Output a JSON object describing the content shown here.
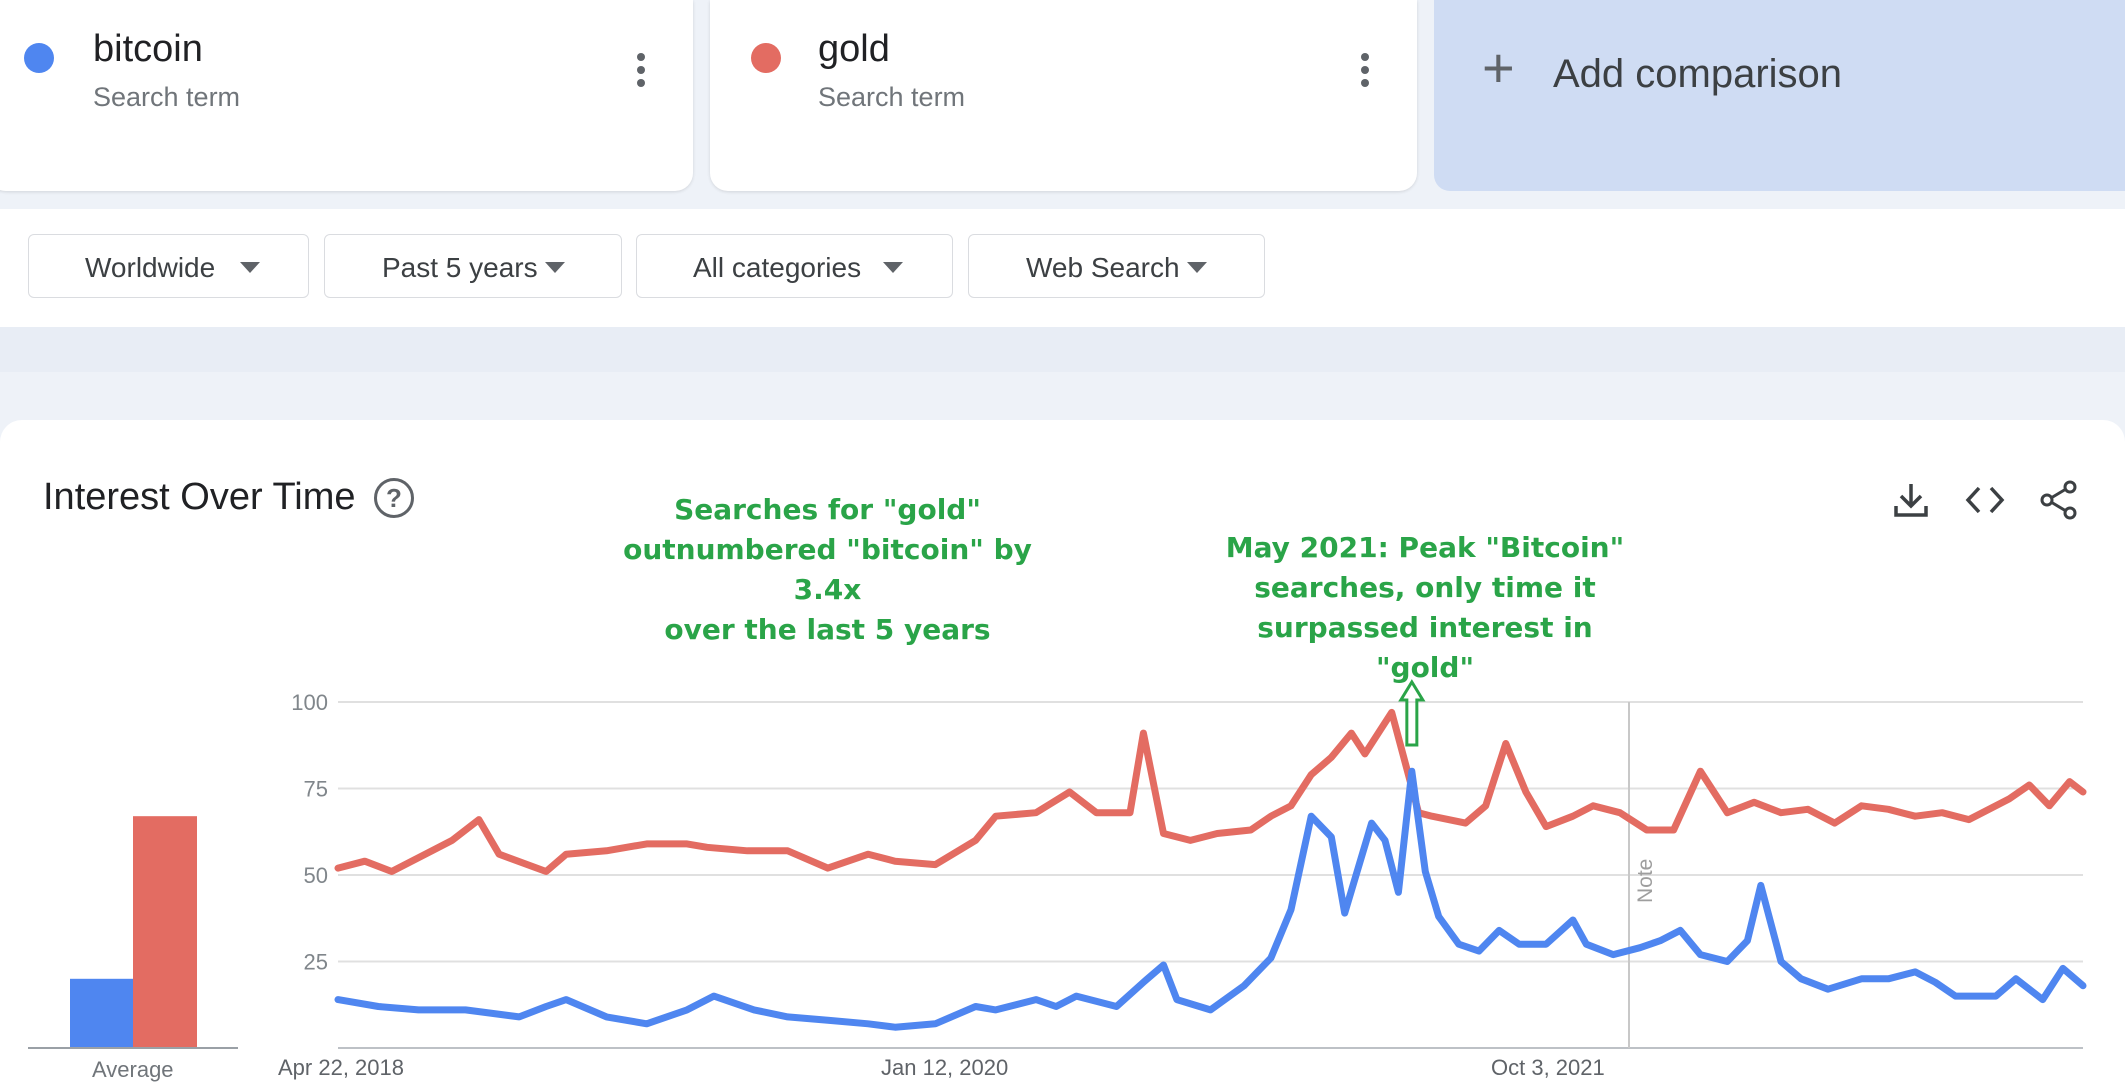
{
  "terms": [
    {
      "name": "bitcoin",
      "subtitle": "Search term",
      "color": "#4f86f0"
    },
    {
      "name": "gold",
      "subtitle": "Search term",
      "color": "#e36c62"
    }
  ],
  "add_comparison": {
    "plus": "+",
    "label": "Add comparison"
  },
  "filters": [
    {
      "label": "Worldwide"
    },
    {
      "label": "Past 5 years"
    },
    {
      "label": "All categories"
    },
    {
      "label": "Web Search"
    }
  ],
  "chart_card": {
    "title": "Interest Over Time",
    "help": "?",
    "tools": [
      "download-icon",
      "embed-code-icon",
      "share-icon"
    ]
  },
  "annotations": {
    "gold_vs_bitcoin": [
      "Searches for \"gold\"",
      "outnumbered \"bitcoin\" by 3.4x",
      "over the last 5 years"
    ],
    "may_2021": [
      "May 2021: Peak \"Bitcoin\"",
      "searches, only time it",
      "surpassed interest in \"gold\""
    ]
  },
  "chart_data": {
    "type": "line",
    "title": "Interest Over Time",
    "x_ticks": [
      "Apr 22, 2018",
      "Jan 12, 2020",
      "Oct 3, 2021"
    ],
    "note_label": "Note",
    "yticks": [
      25,
      50,
      75,
      100
    ],
    "ylim": [
      0,
      100
    ],
    "grid": true,
    "x_range": [
      "2018-04-22",
      "2023-04-16"
    ],
    "series": [
      {
        "name": "bitcoin",
        "color": "#4f86f0",
        "average": 20,
        "points": [
          [
            "2018-04-22",
            14
          ],
          [
            "2018-06-03",
            12
          ],
          [
            "2018-07-15",
            11
          ],
          [
            "2018-09-02",
            11
          ],
          [
            "2018-10-28",
            9
          ],
          [
            "2018-11-25",
            12
          ],
          [
            "2018-12-16",
            14
          ],
          [
            "2019-01-27",
            9
          ],
          [
            "2019-03-10",
            7
          ],
          [
            "2019-04-21",
            11
          ],
          [
            "2019-05-19",
            15
          ],
          [
            "2019-06-30",
            11
          ],
          [
            "2019-08-04",
            9
          ],
          [
            "2019-09-15",
            8
          ],
          [
            "2019-10-27",
            7
          ],
          [
            "2019-11-24",
            6
          ],
          [
            "2020-01-05",
            7
          ],
          [
            "2020-02-16",
            12
          ],
          [
            "2020-03-08",
            11
          ],
          [
            "2020-04-19",
            14
          ],
          [
            "2020-05-10",
            12
          ],
          [
            "2020-05-31",
            15
          ],
          [
            "2020-07-12",
            12
          ],
          [
            "2020-08-09",
            19
          ],
          [
            "2020-08-30",
            24
          ],
          [
            "2020-09-13",
            14
          ],
          [
            "2020-10-18",
            11
          ],
          [
            "2020-11-22",
            18
          ],
          [
            "2020-12-20",
            26
          ],
          [
            "2021-01-10",
            40
          ],
          [
            "2021-01-31",
            67
          ],
          [
            "2021-02-21",
            61
          ],
          [
            "2021-03-07",
            39
          ],
          [
            "2021-04-04",
            65
          ],
          [
            "2021-04-18",
            60
          ],
          [
            "2021-05-02",
            45
          ],
          [
            "2021-05-16",
            80
          ],
          [
            "2021-05-30",
            51
          ],
          [
            "2021-06-13",
            38
          ],
          [
            "2021-07-04",
            30
          ],
          [
            "2021-07-25",
            28
          ],
          [
            "2021-08-15",
            34
          ],
          [
            "2021-09-05",
            30
          ],
          [
            "2021-10-03",
            30
          ],
          [
            "2021-10-31",
            37
          ],
          [
            "2021-11-14",
            30
          ],
          [
            "2021-12-12",
            27
          ],
          [
            "2022-01-09",
            29
          ],
          [
            "2022-01-30",
            31
          ],
          [
            "2022-02-20",
            34
          ],
          [
            "2022-03-13",
            27
          ],
          [
            "2022-04-10",
            25
          ],
          [
            "2022-05-01",
            31
          ],
          [
            "2022-05-15",
            47
          ],
          [
            "2022-06-05",
            25
          ],
          [
            "2022-06-26",
            20
          ],
          [
            "2022-07-24",
            17
          ],
          [
            "2022-08-28",
            20
          ],
          [
            "2022-09-25",
            20
          ],
          [
            "2022-10-23",
            22
          ],
          [
            "2022-11-13",
            19
          ],
          [
            "2022-12-04",
            15
          ],
          [
            "2023-01-15",
            15
          ],
          [
            "2023-02-05",
            20
          ],
          [
            "2023-03-05",
            14
          ],
          [
            "2023-03-26",
            23
          ],
          [
            "2023-04-16",
            18
          ]
        ]
      },
      {
        "name": "gold",
        "color": "#e36c62",
        "average": 67,
        "points": [
          [
            "2018-04-22",
            52
          ],
          [
            "2018-05-20",
            54
          ],
          [
            "2018-06-17",
            51
          ],
          [
            "2018-07-29",
            57
          ],
          [
            "2018-08-19",
            60
          ],
          [
            "2018-09-16",
            66
          ],
          [
            "2018-10-07",
            56
          ],
          [
            "2018-11-25",
            51
          ],
          [
            "2018-12-16",
            56
          ],
          [
            "2019-01-27",
            57
          ],
          [
            "2019-03-10",
            59
          ],
          [
            "2019-04-21",
            59
          ],
          [
            "2019-05-12",
            58
          ],
          [
            "2019-06-23",
            57
          ],
          [
            "2019-08-04",
            57
          ],
          [
            "2019-09-15",
            52
          ],
          [
            "2019-10-27",
            56
          ],
          [
            "2019-11-24",
            54
          ],
          [
            "2020-01-05",
            53
          ],
          [
            "2020-02-16",
            60
          ],
          [
            "2020-03-08",
            67
          ],
          [
            "2020-04-19",
            68
          ],
          [
            "2020-05-24",
            74
          ],
          [
            "2020-06-21",
            68
          ],
          [
            "2020-07-26",
            68
          ],
          [
            "2020-08-09",
            91
          ],
          [
            "2020-08-30",
            62
          ],
          [
            "2020-09-27",
            60
          ],
          [
            "2020-10-25",
            62
          ],
          [
            "2020-11-29",
            63
          ],
          [
            "2020-12-20",
            67
          ],
          [
            "2021-01-10",
            70
          ],
          [
            "2021-01-31",
            79
          ],
          [
            "2021-02-21",
            84
          ],
          [
            "2021-03-14",
            91
          ],
          [
            "2021-03-28",
            85
          ],
          [
            "2021-04-25",
            97
          ],
          [
            "2021-05-23",
            68
          ],
          [
            "2021-06-06",
            67
          ],
          [
            "2021-07-11",
            65
          ],
          [
            "2021-08-01",
            70
          ],
          [
            "2021-08-22",
            88
          ],
          [
            "2021-09-12",
            74
          ],
          [
            "2021-10-03",
            64
          ],
          [
            "2021-10-31",
            67
          ],
          [
            "2021-11-21",
            70
          ],
          [
            "2021-12-19",
            68
          ],
          [
            "2022-01-16",
            63
          ],
          [
            "2022-02-13",
            63
          ],
          [
            "2022-03-13",
            80
          ],
          [
            "2022-04-10",
            68
          ],
          [
            "2022-05-08",
            71
          ],
          [
            "2022-06-05",
            68
          ],
          [
            "2022-07-03",
            69
          ],
          [
            "2022-07-31",
            65
          ],
          [
            "2022-08-28",
            70
          ],
          [
            "2022-09-25",
            69
          ],
          [
            "2022-10-23",
            67
          ],
          [
            "2022-11-20",
            68
          ],
          [
            "2022-12-18",
            66
          ],
          [
            "2023-01-29",
            72
          ],
          [
            "2023-02-19",
            76
          ],
          [
            "2023-03-12",
            70
          ],
          [
            "2023-04-02",
            77
          ],
          [
            "2023-04-16",
            74
          ]
        ]
      }
    ],
    "average_label": "Average"
  }
}
